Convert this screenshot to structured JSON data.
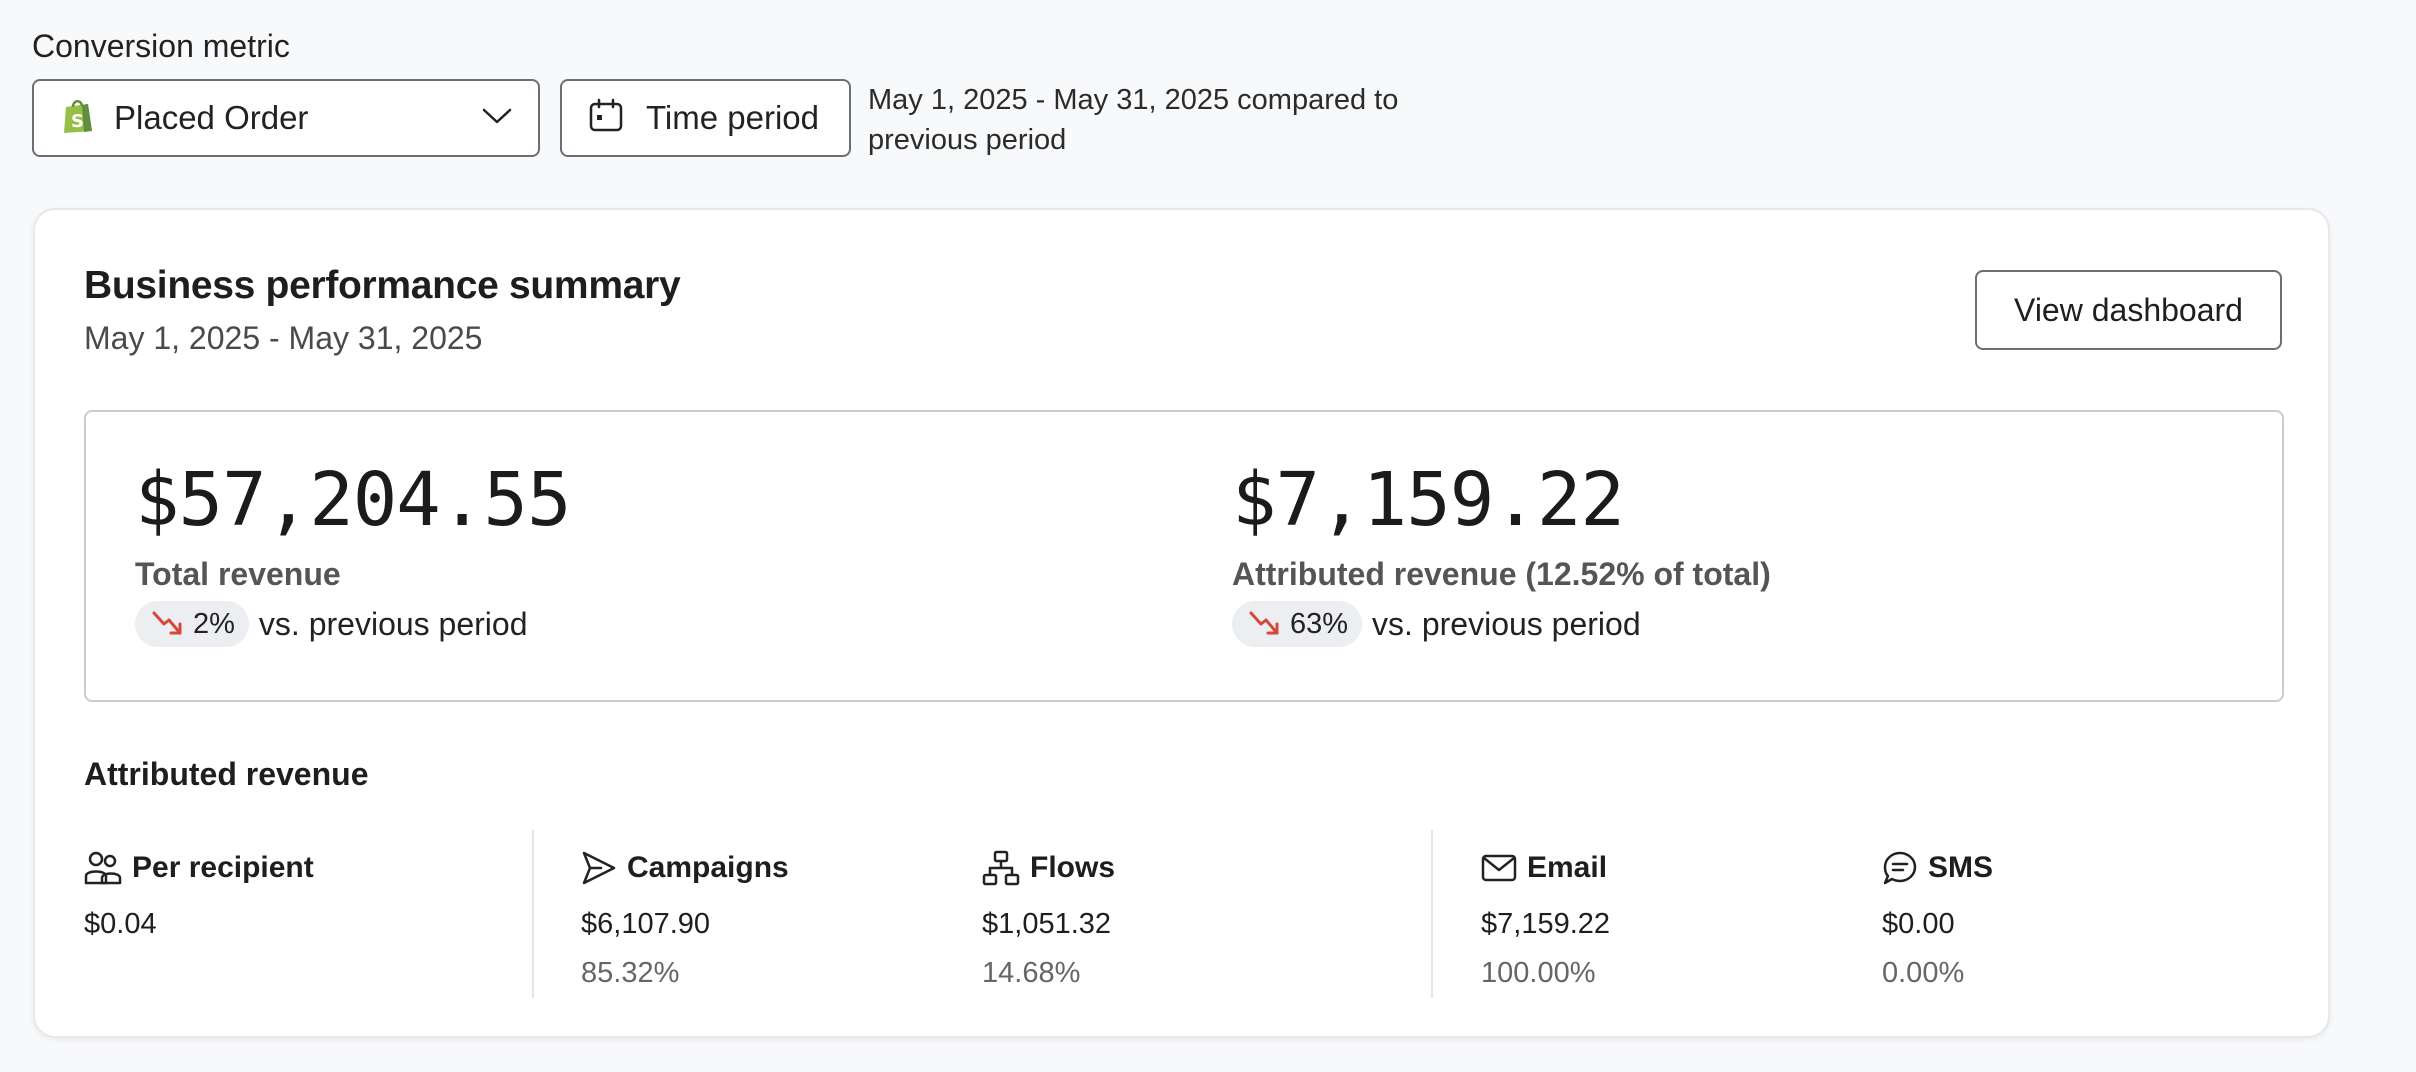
{
  "conversion_metric": {
    "label": "Conversion metric",
    "selected": "Placed Order",
    "icon": "shopify-bag-icon"
  },
  "time_period": {
    "button_label": "Time period",
    "description": "May 1, 2025 - May 31, 2025 compared to previous period"
  },
  "summary": {
    "title": "Business performance summary",
    "date_range": "May 1, 2025 - May 31, 2025",
    "view_button": "View dashboard",
    "total": {
      "value": "$57,204.55",
      "label": "Total revenue",
      "change": "2%",
      "change_suffix": "vs. previous period",
      "trend": "down"
    },
    "attributed": {
      "value": "$7,159.22",
      "label": "Attributed revenue (12.52% of total)",
      "change": "63%",
      "change_suffix": "vs. previous period",
      "trend": "down"
    }
  },
  "attributed_revenue": {
    "title": "Attributed revenue",
    "per_recipient": {
      "label": "Per recipient",
      "value": "$0.04"
    },
    "campaigns": {
      "label": "Campaigns",
      "value": "$6,107.90",
      "pct": "85.32%"
    },
    "flows": {
      "label": "Flows",
      "value": "$1,051.32",
      "pct": "14.68%"
    },
    "email": {
      "label": "Email",
      "value": "$7,159.22",
      "pct": "100.00%"
    },
    "sms": {
      "label": "SMS",
      "value": "$0.00",
      "pct": "0.00%"
    }
  },
  "colors": {
    "trend_down": "#d6473b",
    "shopify_green": "#95bf47"
  }
}
